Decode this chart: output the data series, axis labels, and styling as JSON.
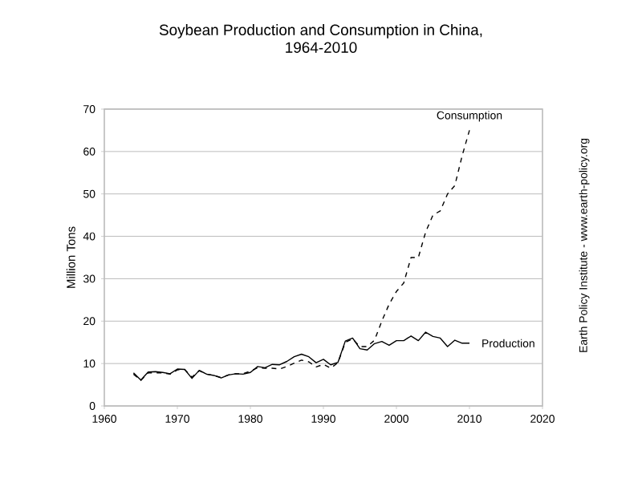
{
  "chart_data": {
    "type": "line",
    "title": "Soybean Production and Consumption in China,",
    "subtitle": "1964-2010",
    "ylabel": "Million Tons",
    "annotations": [
      "Earth Policy Institute - www.earth-policy.org"
    ],
    "x": [
      1964,
      1965,
      1966,
      1967,
      1968,
      1969,
      1970,
      1971,
      1972,
      1973,
      1974,
      1975,
      1976,
      1977,
      1978,
      1979,
      1980,
      1981,
      1982,
      1983,
      1984,
      1985,
      1986,
      1987,
      1988,
      1989,
      1990,
      1991,
      1992,
      1993,
      1994,
      1995,
      1996,
      1997,
      1998,
      1999,
      2000,
      2001,
      2002,
      2003,
      2004,
      2005,
      2006,
      2007,
      2008,
      2009,
      2010
    ],
    "series": [
      {
        "name": "Consumption",
        "color": "#000000",
        "line_style": "dashed",
        "values": [
          7.5,
          6.0,
          7.8,
          7.8,
          7.8,
          7.5,
          8.5,
          8.6,
          6.8,
          8.3,
          7.5,
          7.2,
          6.7,
          7.3,
          7.6,
          7.6,
          8.2,
          9.0,
          8.9,
          8.9,
          8.7,
          9.3,
          10.1,
          10.8,
          10.4,
          9.2,
          9.8,
          8.9,
          10.2,
          15.0,
          15.8,
          14.0,
          14.0,
          15.5,
          20,
          24,
          27,
          29,
          35,
          35,
          41,
          45,
          46,
          50,
          52,
          59,
          65
        ]
      },
      {
        "name": "Production",
        "color": "#000000",
        "line_style": "solid",
        "values": [
          7.8,
          6.1,
          8.0,
          8.1,
          7.9,
          7.6,
          8.7,
          8.6,
          6.5,
          8.4,
          7.5,
          7.2,
          6.6,
          7.3,
          7.6,
          7.5,
          7.9,
          9.3,
          9.0,
          9.8,
          9.7,
          10.5,
          11.6,
          12.2,
          11.6,
          10.2,
          11.0,
          9.7,
          10.3,
          15.3,
          16.0,
          13.5,
          13.2,
          14.7,
          15.2,
          14.3,
          15.4,
          15.4,
          16.5,
          15.4,
          17.4,
          16.4,
          16.0,
          14.0,
          15.5,
          14.8,
          14.8
        ]
      }
    ],
    "xlim": [
      1960,
      2020
    ],
    "xticks": [
      1960,
      1970,
      1980,
      1990,
      2000,
      2010,
      2020
    ],
    "ylim": [
      0,
      70
    ],
    "yticks": [
      0,
      10,
      20,
      30,
      40,
      50,
      60,
      70
    ],
    "grid": "y",
    "legend": false,
    "marker": "none"
  }
}
